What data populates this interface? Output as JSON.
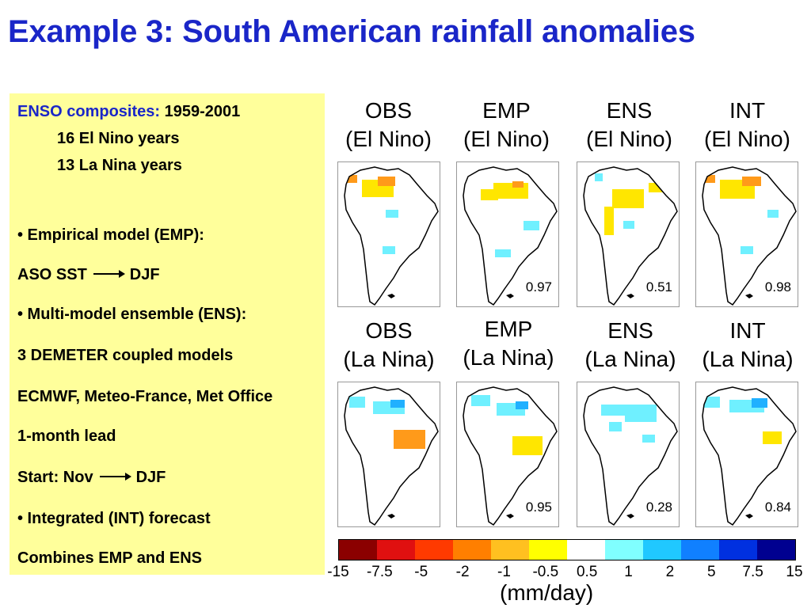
{
  "title": "Example 3: South American rainfall anomalies",
  "panel": {
    "enso_label": "ENSO composites:",
    "enso_years": "1959-2001",
    "el_nino_count": "16 El Nino years",
    "la_nina_count": "13 La Nina years",
    "emp_bullet": "• Empirical model (EMP):",
    "aso_sst": "ASO SST",
    "djf1": "DJF",
    "ens_bullet": "• Multi-model ensemble (ENS):",
    "demeter": "3 DEMETER coupled models",
    "centres": "ECMWF, Meteo-France, Met Office",
    "lead": "1-month lead",
    "start_nov": "Start: Nov",
    "djf2": "DJF",
    "int_bullet": "• Integrated (INT) forecast",
    "combines": "Combines EMP and ENS"
  },
  "maps": {
    "el_nino": [
      {
        "name": "OBS",
        "phase": "(El Nino)",
        "corr": ""
      },
      {
        "name": "EMP",
        "phase": "(El Nino)",
        "corr": "0.97"
      },
      {
        "name": "ENS",
        "phase": "(El Nino)",
        "corr": "0.51"
      },
      {
        "name": "INT",
        "phase": "(El Nino)",
        "corr": "0.98"
      }
    ],
    "la_nina": [
      {
        "name": "OBS",
        "phase": "(La Nina)",
        "corr": ""
      },
      {
        "name": "EMP",
        "phase": "(La Nina)",
        "corr": "0.95"
      },
      {
        "name": "ENS",
        "phase": "(La Nina)",
        "corr": "0.28"
      },
      {
        "name": "INT",
        "phase": "(La Nina)",
        "corr": "0.84"
      }
    ]
  },
  "colorbar": {
    "ticks": [
      "-15",
      "-7.5",
      "-5",
      "-2",
      "-1",
      "-0.5",
      "0.5",
      "1",
      "2",
      "5",
      "7.5",
      "15"
    ],
    "colors": [
      "#8b0000",
      "#e01010",
      "#ff3a00",
      "#ff7f00",
      "#ffc020",
      "#ffff00",
      "#ffffff",
      "#80ffff",
      "#20c8ff",
      "#1080ff",
      "#0030e0",
      "#000090"
    ],
    "units": "(mm/day)"
  }
}
